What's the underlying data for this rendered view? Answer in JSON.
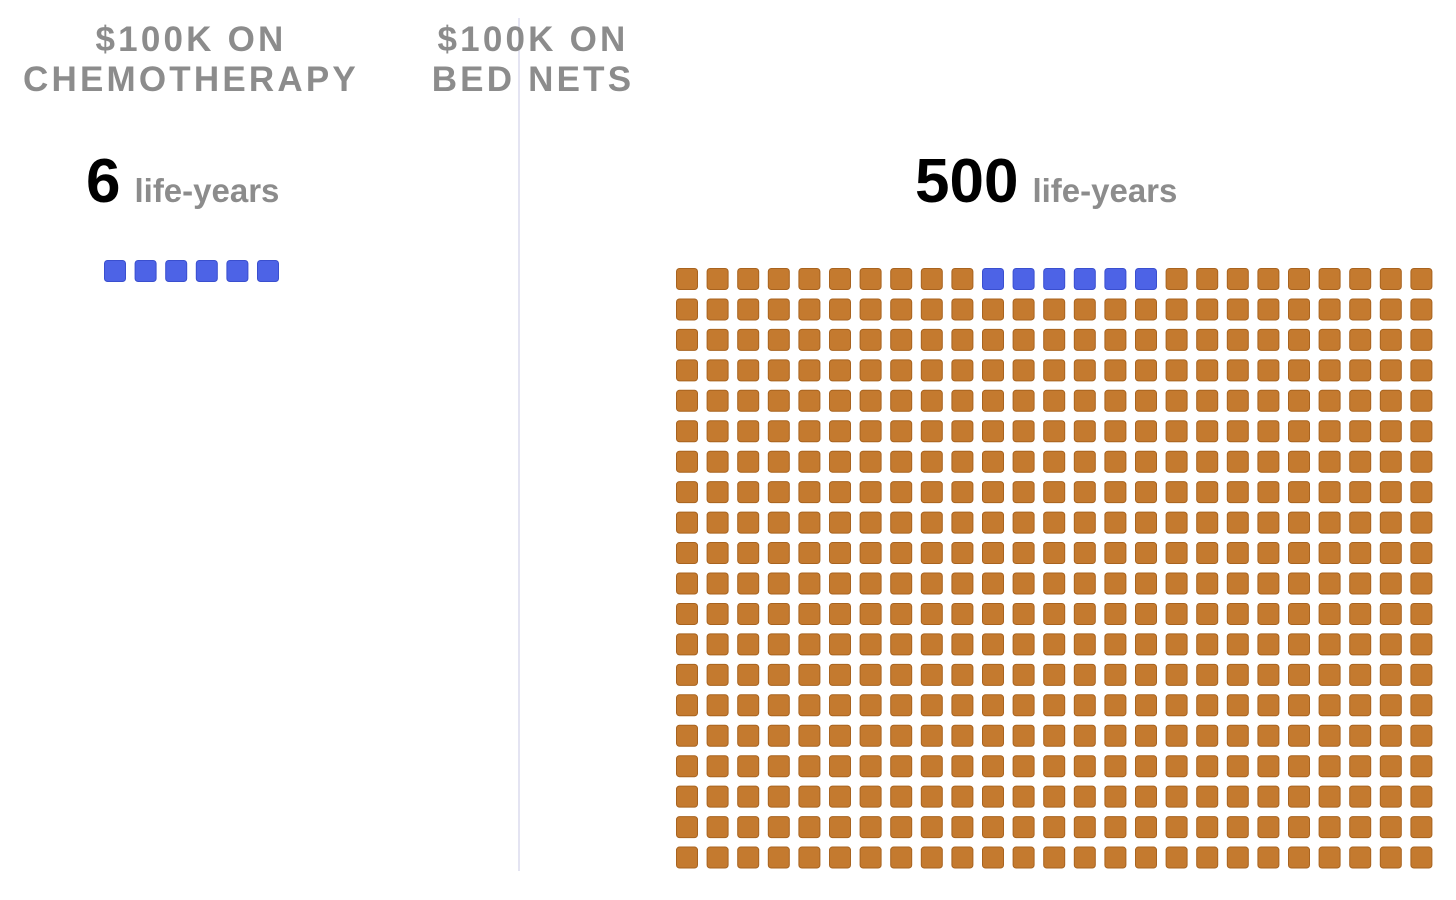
{
  "chart_data": [
    {
      "type": "waffle",
      "title_line1": "$100K ON",
      "title_line2": "CHEMOTHERAPY",
      "value": 6,
      "value_label": "6",
      "unit": "life-years",
      "highlight_count": 6
    },
    {
      "type": "waffle",
      "title_line1": "$100K ON",
      "title_line2": "BED NETS",
      "value": 500,
      "value_label": "500",
      "unit": "life-years",
      "highlight_count": 6,
      "highlight_start_index": 10,
      "columns": 25,
      "rows": 20
    }
  ],
  "colors": {
    "highlight_fill": "#4d63e6",
    "highlight_border": "#3a4fcf",
    "base_fill": "#c47a2f",
    "base_border": "#a8631f",
    "title": "#8c8c8c",
    "number": "#000000",
    "divider": "#e4e4f2"
  }
}
